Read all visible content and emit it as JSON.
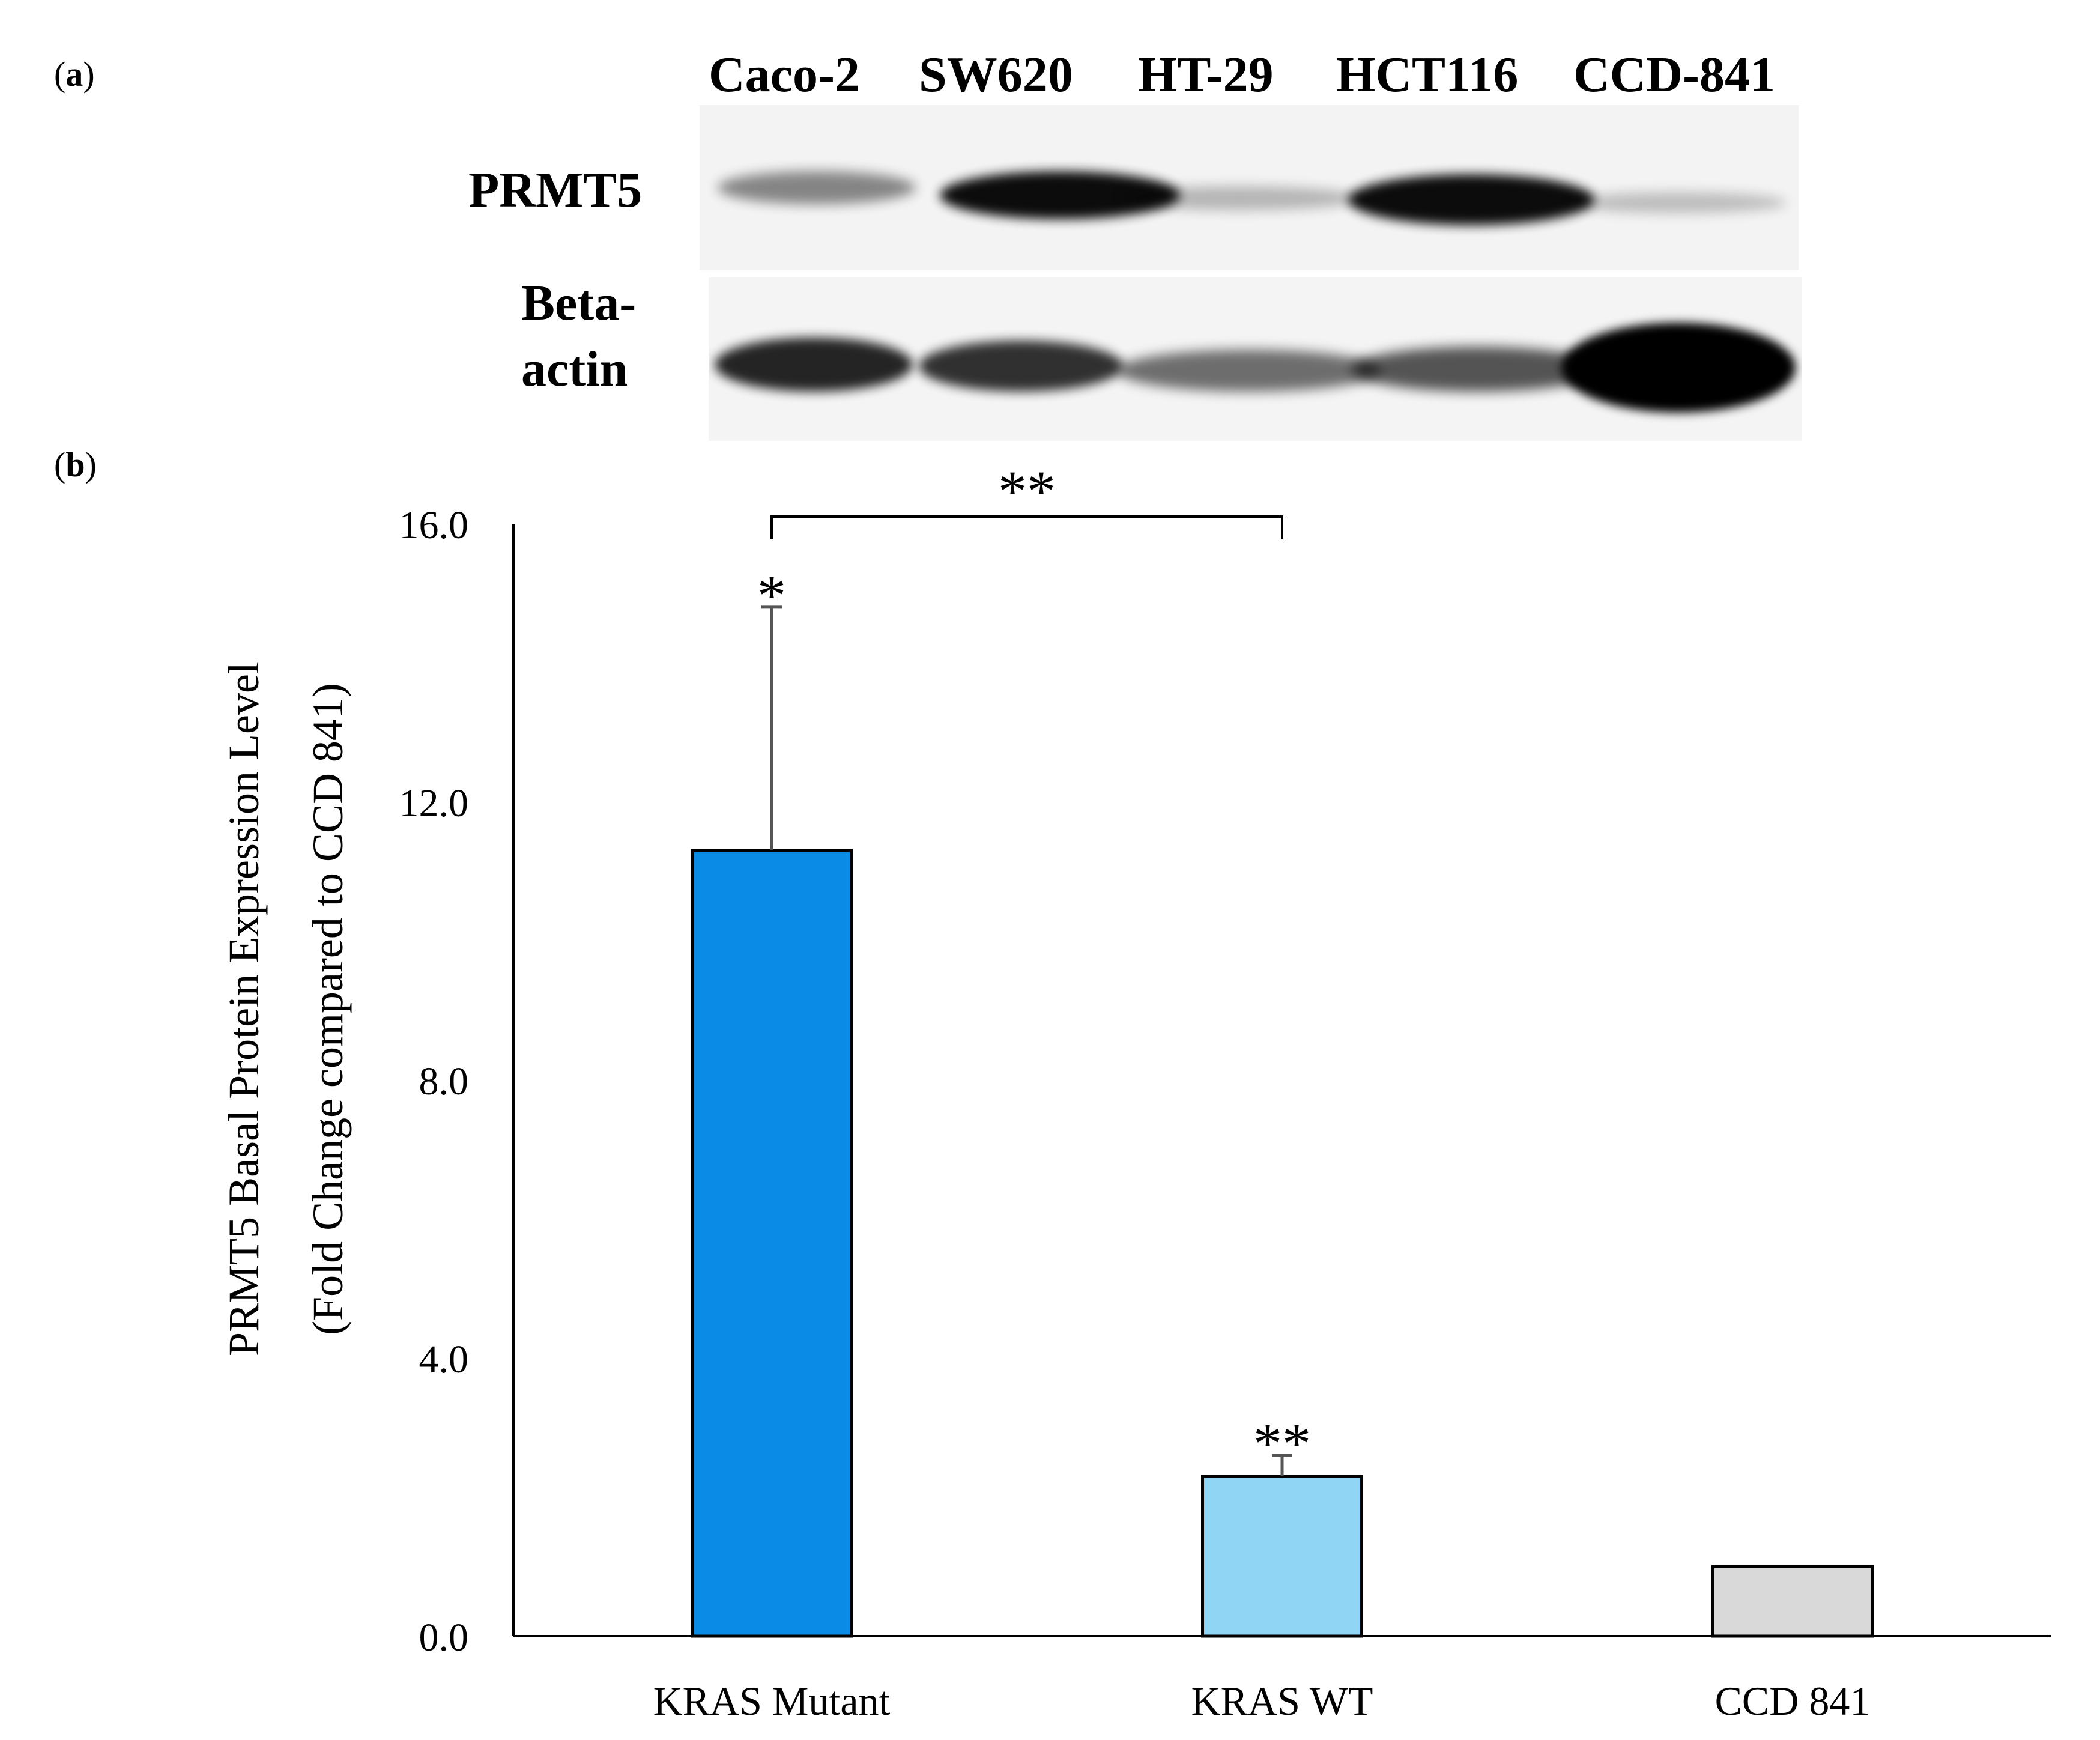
{
  "panel_a": {
    "label_letter": "a",
    "lanes": [
      "Caco-2",
      "SW620",
      "HT-29",
      "HCT116",
      "CCD-841"
    ],
    "rows": [
      "PRMT5",
      "Beta-",
      "actin"
    ]
  },
  "panel_b": {
    "label_letter": "b"
  },
  "colors": {
    "kras_mutant": "#0a8ce6",
    "kras_wt": "#91d5f5",
    "ccd_841": "#d9d9d9",
    "error_bar": "#555555"
  },
  "chart_data": {
    "type": "bar",
    "categories": [
      "KRAS Mutant",
      "KRAS WT",
      "CCD 841"
    ],
    "values": [
      11.3,
      2.3,
      1.0
    ],
    "error_upper": [
      3.5,
      0.3,
      0
    ],
    "ylim": [
      0,
      16
    ],
    "yticks": [
      "0.0",
      "4.0",
      "8.0",
      "12.0",
      "16.0"
    ],
    "xlabel": "",
    "ylabel": "PRMT5 Basal Protein Expression Level",
    "ylabel2": "(Fold Change compared to CCD 841)",
    "bar_annotations": [
      "*",
      "**",
      ""
    ],
    "bracket": {
      "from": "KRAS Mutant",
      "to": "KRAS WT",
      "label": "**"
    },
    "grid": false,
    "legend": "none"
  }
}
